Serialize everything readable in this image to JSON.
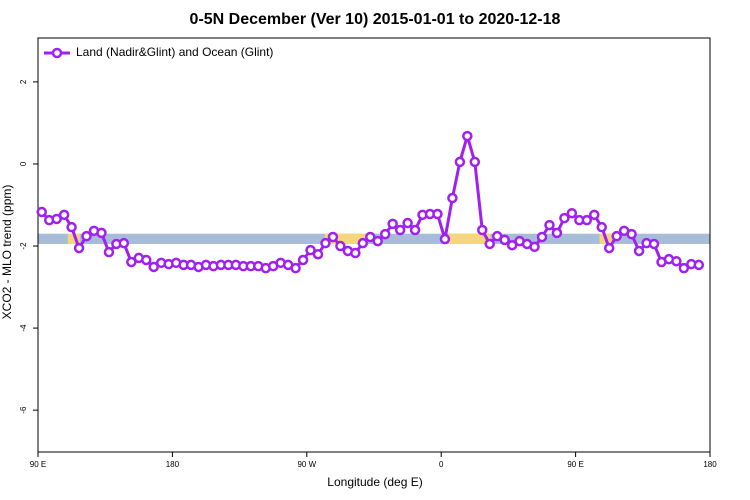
{
  "chart_data": {
    "type": "line",
    "title": "0-5N December (Ver 10)   2015-01-01 to 2020-12-18",
    "x_label": "Longitude (deg E)",
    "y_label": "XCO2 - MLO trend (ppm)",
    "xlim": [
      90,
      540
    ],
    "ylim": [
      -7.02,
      3.07
    ],
    "xticks": [
      {
        "value": 90,
        "label": "90 E"
      },
      180,
      {
        "value": 270,
        "label": "90 W"
      },
      {
        "value": 360,
        "label": "0"
      },
      {
        "value": 450,
        "label": "90 E"
      },
      {
        "value": 540,
        "label": "180"
      }
    ],
    "yticks": [
      -6,
      -4,
      -2,
      0,
      2
    ],
    "band": {
      "ymin": -1.95,
      "ymax": -1.7,
      "color": "#a7bcd8",
      "highlight_color": "#f5d67a",
      "highlights": [
        [
          110,
          118
        ],
        [
          282,
          311
        ],
        [
          365,
          393
        ],
        [
          466,
          476
        ]
      ]
    },
    "legend": "top-left",
    "series": [
      {
        "name": "Land (Nadir&Glint) and Ocean (Glint)",
        "color": "#a020f0",
        "x": [
          92.5,
          97.5,
          102.5,
          107.5,
          112.5,
          117.5,
          122.5,
          127.5,
          132.5,
          137.5,
          142.5,
          147.5,
          152.5,
          157.5,
          162.5,
          167.5,
          172.5,
          177.5,
          182.5,
          187.5,
          192.5,
          197.5,
          202.5,
          207.5,
          212.5,
          217.5,
          222.5,
          227.5,
          232.5,
          237.5,
          242.5,
          247.5,
          252.5,
          257.5,
          262.5,
          267.5,
          272.5,
          277.5,
          282.5,
          287.5,
          292.5,
          297.5,
          302.5,
          307.5,
          312.5,
          317.5,
          322.5,
          327.5,
          332.5,
          337.5,
          342.5,
          347.5,
          352.5,
          357.5,
          362.5,
          367.5,
          372.5,
          377.5,
          382.5,
          387.5,
          392.5,
          397.5,
          402.5,
          407.5,
          412.5,
          417.5,
          422.5,
          427.5,
          432.5,
          437.5,
          442.5,
          447.5,
          452.5,
          457.5,
          462.5,
          467.5,
          472.5,
          477.5,
          482.5,
          487.5,
          492.5,
          497.5,
          502.5,
          507.5,
          512.5,
          517.5,
          522.5,
          527.5,
          532.5
        ],
        "values": [
          -1.17,
          -1.37,
          -1.34,
          -1.24,
          -1.54,
          -2.05,
          -1.76,
          -1.63,
          -1.68,
          -2.15,
          -1.95,
          -1.93,
          -2.39,
          -2.29,
          -2.34,
          -2.51,
          -2.41,
          -2.44,
          -2.41,
          -2.46,
          -2.46,
          -2.51,
          -2.46,
          -2.49,
          -2.46,
          -2.46,
          -2.46,
          -2.49,
          -2.49,
          -2.49,
          -2.54,
          -2.49,
          -2.41,
          -2.46,
          -2.54,
          -2.34,
          -2.1,
          -2.2,
          -1.93,
          -1.78,
          -2.0,
          -2.12,
          -2.17,
          -1.93,
          -1.78,
          -1.88,
          -1.71,
          -1.46,
          -1.61,
          -1.44,
          -1.61,
          -1.24,
          -1.22,
          -1.22,
          -1.83,
          -0.83,
          0.05,
          0.68,
          0.05,
          -1.61,
          -1.95,
          -1.76,
          -1.85,
          -1.98,
          -1.88,
          -1.95,
          -2.02,
          -1.78,
          -1.49,
          -1.68,
          -1.32,
          -1.2,
          -1.37,
          -1.37,
          -1.24,
          -1.54,
          -2.05,
          -1.76,
          -1.63,
          -1.71,
          -2.12,
          -1.93,
          -1.95,
          -2.39,
          -2.32,
          -2.37,
          -2.54,
          -2.44,
          -2.46
        ]
      }
    ]
  }
}
